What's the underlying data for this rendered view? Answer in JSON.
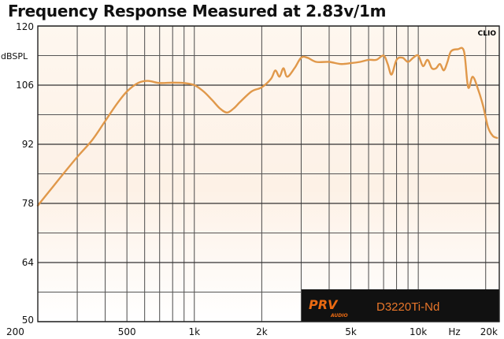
{
  "chart_data": {
    "type": "line",
    "title": "Frequency Response Measured at 2.83v/1m",
    "ylabel": "dBSPL",
    "xlabel_unit": "Hz",
    "watermark": "CLIO",
    "x_scale": "log",
    "xlim": [
      200,
      23000
    ],
    "ylim": [
      50,
      120
    ],
    "y_ticks": [
      "120",
      "106",
      "92",
      "78",
      "64",
      "50"
    ],
    "y_tick_values": [
      120,
      106,
      92,
      78,
      64,
      50
    ],
    "x_ticks": [
      "200",
      "500",
      "1k",
      "2k",
      "5k",
      "10k",
      "Hz",
      "20k"
    ],
    "x_tick_values": [
      200,
      500,
      1000,
      2000,
      5000,
      10000,
      14500,
      20000
    ],
    "grid": true,
    "series_color": "#e0984a",
    "series": [
      {
        "x": [
          200,
          230,
          260,
          300,
          350,
          400,
          450,
          500,
          560,
          620,
          700,
          800,
          900,
          1000,
          1100,
          1200,
          1300,
          1400,
          1500,
          1600,
          1800,
          2000,
          2200,
          2300,
          2400,
          2500,
          2600,
          2800,
          3000,
          3200,
          3500,
          4000,
          4500,
          5000,
          5500,
          6000,
          6500,
          7000,
          7300,
          7600,
          8000,
          8500,
          9000,
          9500,
          10000,
          10500,
          11000,
          11500,
          12000,
          12500,
          13000,
          13500,
          14000,
          15000,
          16000,
          16700,
          17500,
          18500,
          19500,
          20500,
          21500,
          22500
        ],
        "y": [
          77.5,
          81.5,
          85,
          89,
          93,
          97.5,
          101.5,
          104.5,
          106.5,
          107,
          106.5,
          106.6,
          106.5,
          106,
          104.5,
          102.5,
          100.5,
          99.5,
          100.5,
          102,
          104.5,
          105.5,
          107.5,
          109.5,
          108,
          110,
          108,
          110,
          112.5,
          112.5,
          111.5,
          111.5,
          111,
          111.2,
          111.5,
          112,
          112,
          113,
          111,
          108.5,
          112,
          112.5,
          111.5,
          112.5,
          113,
          110.5,
          112,
          110,
          110,
          111,
          109.5,
          111.5,
          114,
          114.5,
          114,
          105.5,
          108,
          105,
          101,
          96,
          94,
          93.5
        ]
      }
    ],
    "legend_box": {
      "brand": "PRV",
      "brand_suffix": "AUDIO",
      "model": "D3220Ti-Nd",
      "background": "#111111",
      "brand_color": "#ea6a12",
      "model_color": "#e8762a"
    }
  }
}
